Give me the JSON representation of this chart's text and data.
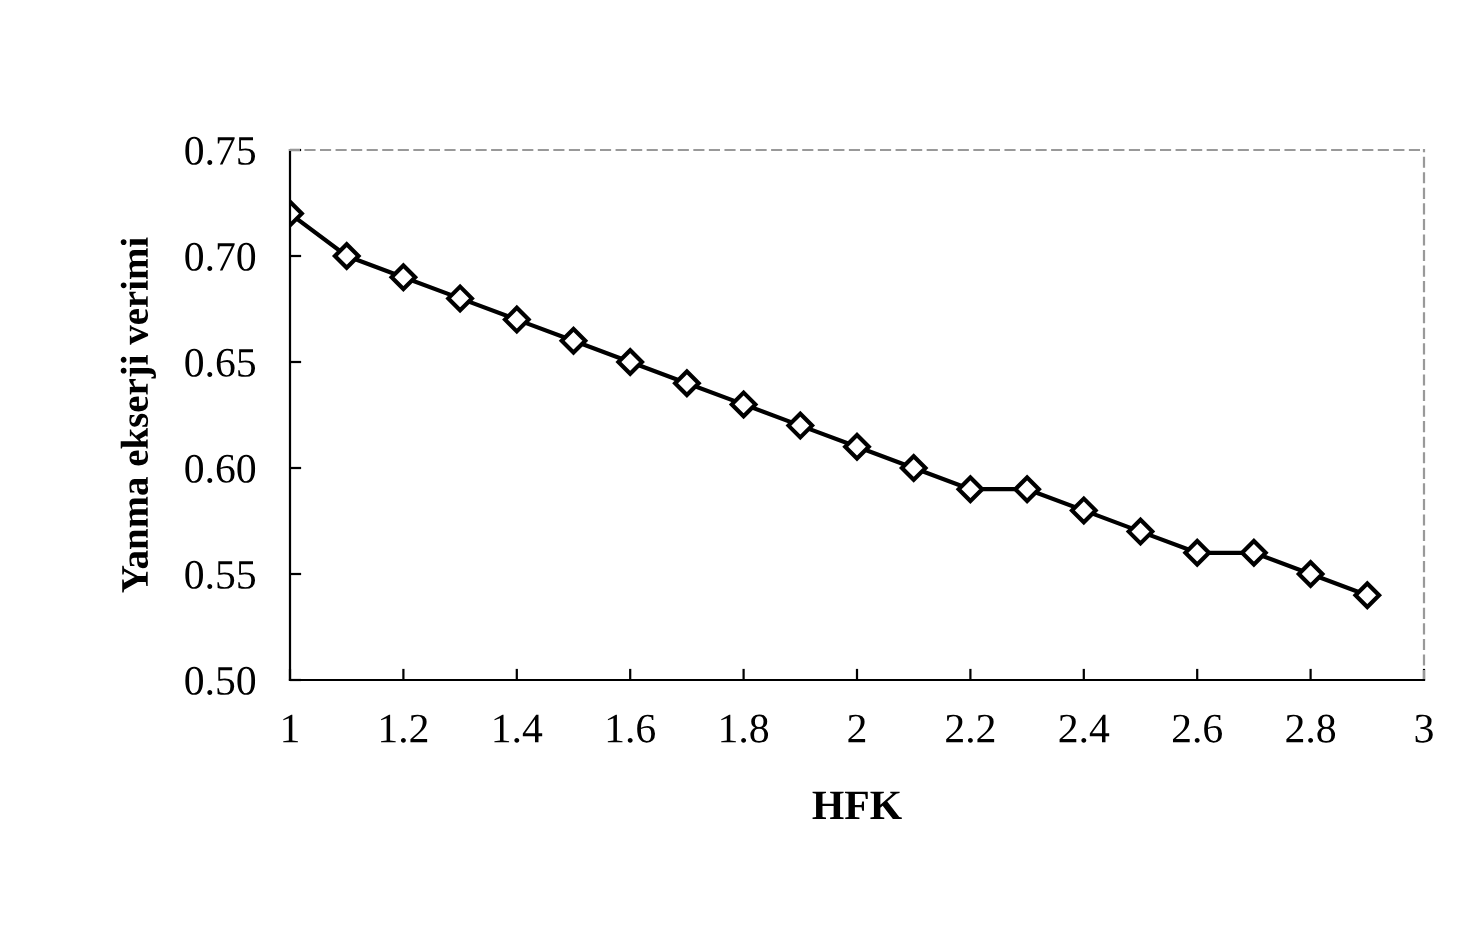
{
  "chart_data": {
    "type": "line",
    "xlabel": "HFK",
    "ylabel": "Yanma ekserji verimi",
    "x": [
      1.0,
      1.1,
      1.2,
      1.3,
      1.4,
      1.5,
      1.6,
      1.7,
      1.8,
      1.9,
      2.0,
      2.1,
      2.2,
      2.3,
      2.4,
      2.5,
      2.6,
      2.7,
      2.8,
      2.9
    ],
    "series": [
      {
        "color": "#000000",
        "values": [
          0.72,
          0.7,
          0.69,
          0.68,
          0.67,
          0.66,
          0.65,
          0.64,
          0.63,
          0.62,
          0.61,
          0.6,
          0.59,
          0.59,
          0.58,
          0.57,
          0.56,
          0.56,
          0.55,
          0.54
        ]
      }
    ],
    "xlim": [
      1,
      3
    ],
    "xticks": [
      1,
      {
        "value": 1.2,
        "label": "1.2"
      },
      {
        "value": 1.4,
        "label": "1.4"
      },
      {
        "value": 1.6,
        "label": "1.6"
      },
      {
        "value": 1.8,
        "label": "1.8"
      },
      2,
      {
        "value": 2.2,
        "label": "2.2"
      },
      {
        "value": 2.4,
        "label": "2.4"
      },
      {
        "value": 2.6,
        "label": "2.6"
      },
      {
        "value": 2.8,
        "label": "2.8"
      },
      3
    ],
    "ylim": [
      0.5,
      0.75
    ],
    "yticks": [
      {
        "value": 0.5,
        "label": "0.50"
      },
      {
        "value": 0.55,
        "label": "0.55"
      },
      {
        "value": 0.6,
        "label": "0.60"
      },
      {
        "value": 0.65,
        "label": "0.65"
      },
      {
        "value": 0.7,
        "label": "0.70"
      },
      {
        "value": 0.75,
        "label": "0.75"
      }
    ],
    "marker": "diamond",
    "line_style": "solid",
    "grid": false,
    "legend": false
  }
}
